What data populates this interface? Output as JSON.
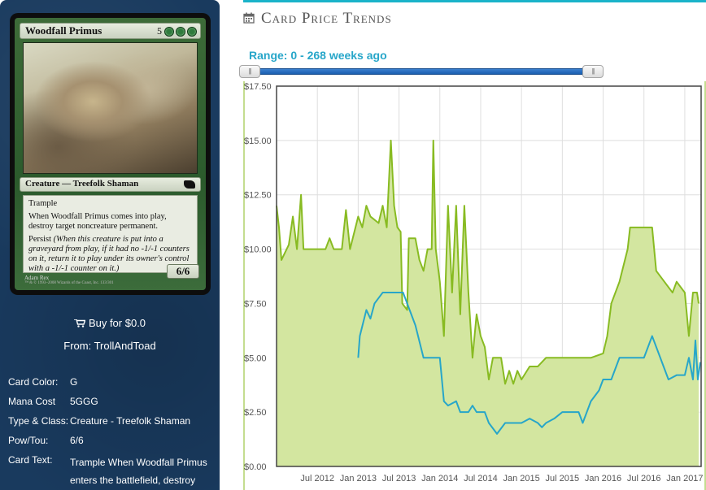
{
  "card": {
    "name": "Woodfall Primus",
    "mana_symbols": [
      "5",
      "G",
      "G",
      "G"
    ],
    "type_line": "Creature — Treefolk Shaman",
    "rules_keyword": "Trample",
    "rules_text": "When Woodfall Primus comes into play, destroy target noncreature permanent.",
    "persist_label": "Persist",
    "persist_reminder": "(When this creature is put into a graveyard from play, if it had no -1/-1 counters on it, return it to play under its owner's control with a -1/-1 counter on it.)",
    "power_toughness": "6/6",
    "artist": "Adam Rex",
    "copyright": "™ & © 1993–2008 Wizards of the Coast, Inc. 133/301"
  },
  "buy": {
    "label": "Buy for $0.0",
    "from": "From: TrollAndToad"
  },
  "details": [
    {
      "label": "Card Color:",
      "value": "G"
    },
    {
      "label": "Mana Cost",
      "value": "5GGG"
    },
    {
      "label": "Type & Class:",
      "value": "Creature - Treefolk Shaman"
    },
    {
      "label": "Pow/Tou:",
      "value": "6/6"
    },
    {
      "label": "Card Text:",
      "value": "Trample When Woodfall Primus enters the battlefield, destroy"
    }
  ],
  "section": {
    "title": "Card Price Trends",
    "icon": "calendar-icon"
  },
  "range": {
    "label": "Range: 0 - 268 weeks ago",
    "handle_glyph": "|||"
  },
  "colors": {
    "accent": "#1ab3c9",
    "panel": "#193a5e",
    "line_green": "#88bb22",
    "fill_green": "#d3e6a0",
    "line_blue": "#27a6c9"
  },
  "chart_data": {
    "type": "line",
    "title": "",
    "xlabel": "",
    "ylabel": "",
    "y_ticks": [
      "$0.00",
      "$2.50",
      "$5.00",
      "$7.50",
      "$10.00",
      "$12.50",
      "$15.00",
      "$17.50"
    ],
    "ylim": [
      0,
      17.5
    ],
    "x_ticks": [
      "Jul 2012",
      "Jan 2013",
      "Jul 2013",
      "Jan 2014",
      "Jul 2014",
      "Jan 2015",
      "Jul 2015",
      "Jan 2016",
      "Jul 2016",
      "Jan 2017"
    ],
    "x_tick_values": [
      2012.5,
      2013.0,
      2013.5,
      2014.0,
      2014.5,
      2015.0,
      2015.5,
      2016.0,
      2016.5,
      2017.0
    ],
    "xlim": [
      2012.0,
      2017.2
    ],
    "grid": true,
    "legend": "none",
    "series": [
      {
        "color": "#88bb22",
        "fill": "#d3e6a0",
        "points": [
          [
            2012.0,
            12.0
          ],
          [
            2012.03,
            11.0
          ],
          [
            2012.06,
            9.5
          ],
          [
            2012.15,
            10.2
          ],
          [
            2012.2,
            11.5
          ],
          [
            2012.25,
            10.0
          ],
          [
            2012.3,
            12.5
          ],
          [
            2012.33,
            10.0
          ],
          [
            2012.5,
            10.0
          ],
          [
            2012.6,
            10.0
          ],
          [
            2012.65,
            10.5
          ],
          [
            2012.7,
            10.0
          ],
          [
            2012.8,
            10.0
          ],
          [
            2012.85,
            11.8
          ],
          [
            2012.9,
            10.0
          ],
          [
            2013.0,
            11.5
          ],
          [
            2013.05,
            11.0
          ],
          [
            2013.1,
            12.0
          ],
          [
            2013.15,
            11.5
          ],
          [
            2013.25,
            11.2
          ],
          [
            2013.3,
            12.0
          ],
          [
            2013.35,
            11.0
          ],
          [
            2013.4,
            15.0
          ],
          [
            2013.44,
            12.0
          ],
          [
            2013.48,
            11.0
          ],
          [
            2013.52,
            10.8
          ],
          [
            2013.54,
            7.5
          ],
          [
            2013.6,
            7.2
          ],
          [
            2013.62,
            10.5
          ],
          [
            2013.7,
            10.5
          ],
          [
            2013.75,
            9.5
          ],
          [
            2013.8,
            9.0
          ],
          [
            2013.85,
            10.0
          ],
          [
            2013.9,
            10.0
          ],
          [
            2013.92,
            15.0
          ],
          [
            2013.95,
            10.0
          ],
          [
            2014.0,
            8.5
          ],
          [
            2014.05,
            6.0
          ],
          [
            2014.1,
            12.0
          ],
          [
            2014.15,
            8.0
          ],
          [
            2014.2,
            12.0
          ],
          [
            2014.25,
            7.0
          ],
          [
            2014.3,
            12.0
          ],
          [
            2014.35,
            8.0
          ],
          [
            2014.4,
            5.0
          ],
          [
            2014.45,
            7.0
          ],
          [
            2014.5,
            6.0
          ],
          [
            2014.55,
            5.5
          ],
          [
            2014.6,
            4.0
          ],
          [
            2014.65,
            5.0
          ],
          [
            2014.75,
            5.0
          ],
          [
            2014.8,
            3.8
          ],
          [
            2014.85,
            4.4
          ],
          [
            2014.9,
            3.8
          ],
          [
            2014.95,
            4.4
          ],
          [
            2015.0,
            4.0
          ],
          [
            2015.1,
            4.6
          ],
          [
            2015.2,
            4.6
          ],
          [
            2015.3,
            5.0
          ],
          [
            2015.5,
            5.0
          ],
          [
            2015.7,
            5.0
          ],
          [
            2015.85,
            5.0
          ],
          [
            2016.0,
            5.2
          ],
          [
            2016.05,
            6.0
          ],
          [
            2016.1,
            7.5
          ],
          [
            2016.2,
            8.5
          ],
          [
            2016.3,
            10.0
          ],
          [
            2016.33,
            11.0
          ],
          [
            2016.6,
            11.0
          ],
          [
            2016.65,
            9.0
          ],
          [
            2016.75,
            8.5
          ],
          [
            2016.85,
            8.0
          ],
          [
            2016.9,
            8.5
          ],
          [
            2017.0,
            8.0
          ],
          [
            2017.05,
            6.0
          ],
          [
            2017.1,
            8.0
          ],
          [
            2017.15,
            8.0
          ],
          [
            2017.17,
            7.5
          ]
        ]
      },
      {
        "color": "#27a6c9",
        "points": [
          [
            2013.0,
            5.0
          ],
          [
            2013.02,
            6.0
          ],
          [
            2013.1,
            7.2
          ],
          [
            2013.15,
            6.8
          ],
          [
            2013.2,
            7.5
          ],
          [
            2013.3,
            8.0
          ],
          [
            2013.45,
            8.0
          ],
          [
            2013.55,
            8.0
          ],
          [
            2013.6,
            7.5
          ],
          [
            2013.7,
            6.5
          ],
          [
            2013.8,
            5.0
          ],
          [
            2014.0,
            5.0
          ],
          [
            2014.05,
            3.0
          ],
          [
            2014.1,
            2.8
          ],
          [
            2014.2,
            3.0
          ],
          [
            2014.25,
            2.5
          ],
          [
            2014.35,
            2.5
          ],
          [
            2014.4,
            2.8
          ],
          [
            2014.45,
            2.5
          ],
          [
            2014.55,
            2.5
          ],
          [
            2014.6,
            2.0
          ],
          [
            2014.7,
            1.5
          ],
          [
            2014.8,
            2.0
          ],
          [
            2014.9,
            2.0
          ],
          [
            2015.0,
            2.0
          ],
          [
            2015.1,
            2.2
          ],
          [
            2015.2,
            2.0
          ],
          [
            2015.25,
            1.8
          ],
          [
            2015.3,
            2.0
          ],
          [
            2015.4,
            2.2
          ],
          [
            2015.5,
            2.5
          ],
          [
            2015.7,
            2.5
          ],
          [
            2015.75,
            2.0
          ],
          [
            2015.85,
            3.0
          ],
          [
            2015.95,
            3.5
          ],
          [
            2016.0,
            4.0
          ],
          [
            2016.1,
            4.0
          ],
          [
            2016.2,
            5.0
          ],
          [
            2016.4,
            5.0
          ],
          [
            2016.5,
            5.0
          ],
          [
            2016.6,
            6.0
          ],
          [
            2016.7,
            5.0
          ],
          [
            2016.8,
            4.0
          ],
          [
            2016.9,
            4.2
          ],
          [
            2017.0,
            4.2
          ],
          [
            2017.05,
            5.0
          ],
          [
            2017.1,
            4.0
          ],
          [
            2017.13,
            5.8
          ],
          [
            2017.16,
            4.0
          ],
          [
            2017.19,
            4.8
          ]
        ]
      }
    ]
  }
}
